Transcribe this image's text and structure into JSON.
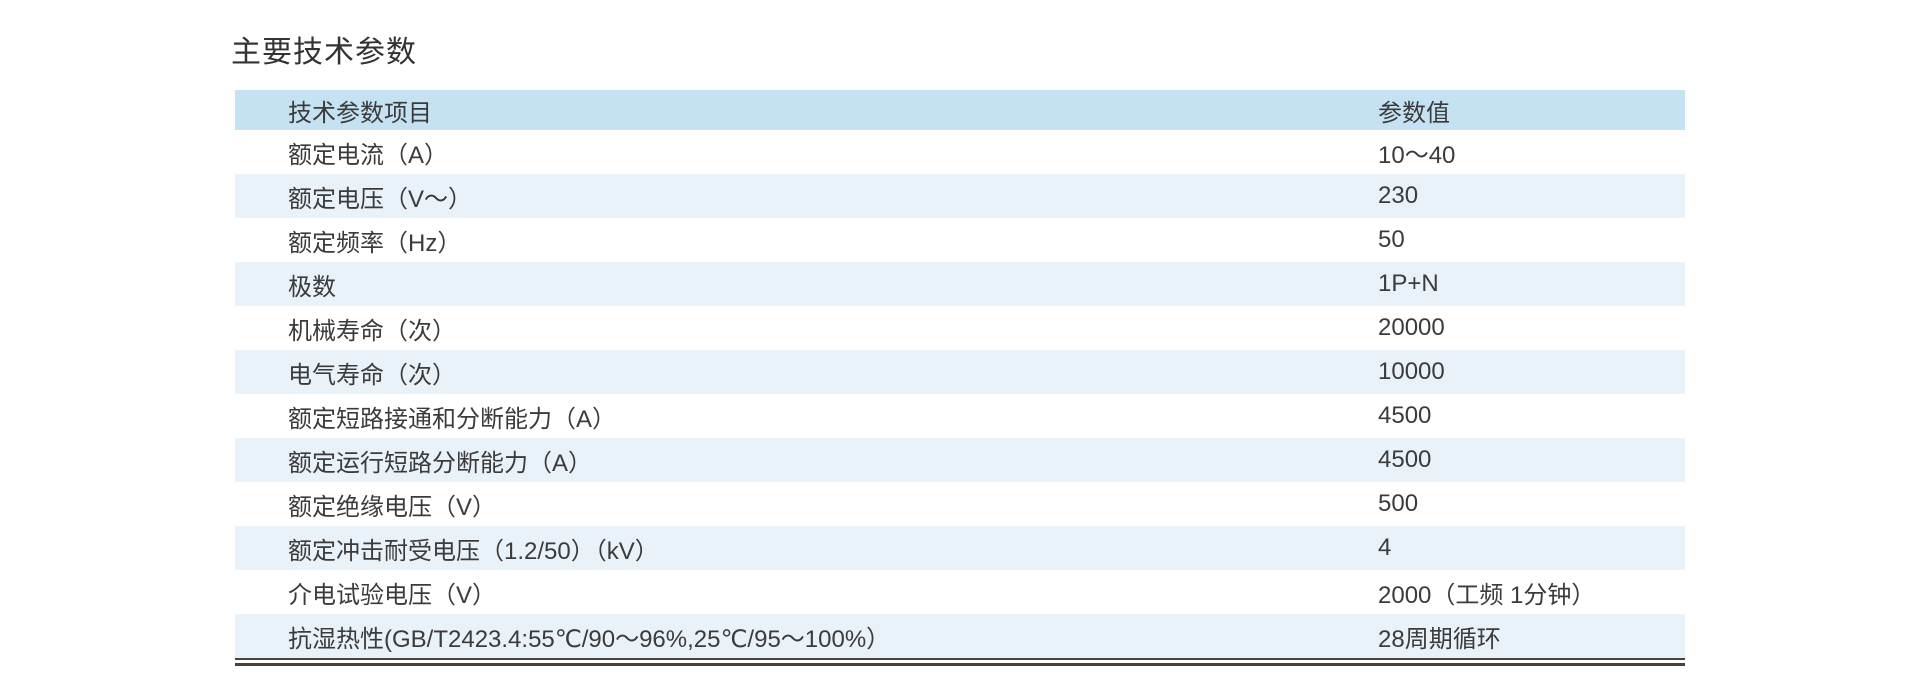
{
  "page": {
    "title": "主要技术参数"
  },
  "table": {
    "headers": [
      "技术参数项目",
      "参数值"
    ],
    "rows": [
      {
        "item": "额定电流（A）",
        "value": "10～40"
      },
      {
        "item": "额定电压（V～）",
        "value": "230"
      },
      {
        "item": "额定频率（Hz）",
        "value": "50"
      },
      {
        "item": "极数",
        "value": "1P+N"
      },
      {
        "item": "机械寿命（次）",
        "value": "20000"
      },
      {
        "item": "电气寿命（次）",
        "value": "10000"
      },
      {
        "item": "额定短路接通和分断能力（A）",
        "value": "4500"
      },
      {
        "item": "额定运行短路分断能力（A）",
        "value": "4500"
      },
      {
        "item": "额定绝缘电压（V）",
        "value": "500"
      },
      {
        "item": "额定冲击耐受电压（1.2/50）（kV）",
        "value": "4"
      },
      {
        "item": "介电试验电压（V）",
        "value": "2000（工频 1分钟）"
      },
      {
        "item": "抗湿热性(GB/T2423.4:55℃/90～96%,25℃/95～100%）",
        "value": "28周期循环"
      }
    ]
  },
  "colors": {
    "header_bg": "#c5e2f2",
    "alt_row_bg": "#e9f1f9",
    "row_bg": "#ffffff",
    "text": "#3b3b3b",
    "title_text": "#333333",
    "bottom_rule": "#47423e"
  }
}
